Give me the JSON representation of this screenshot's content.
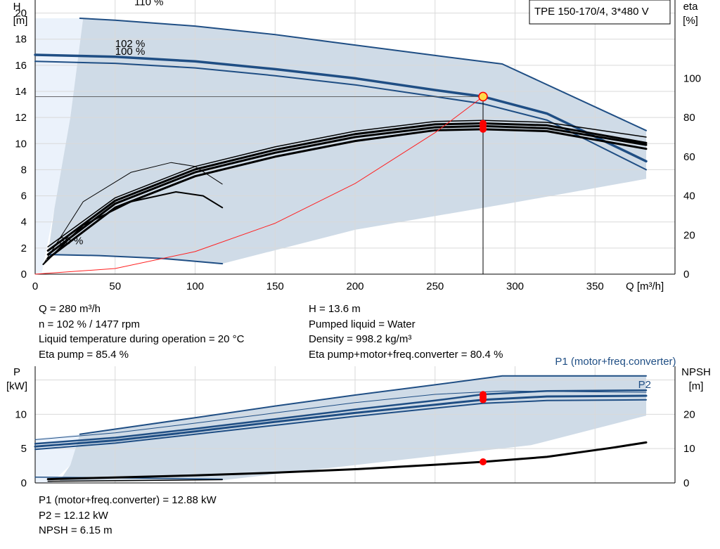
{
  "chart_data": [
    {
      "type": "line",
      "title": "TPE 150-170/4, 3*480 V",
      "xlabel": "Q [m³/h]",
      "ylabel_left": [
        "H",
        "[m]"
      ],
      "ylabel_right": [
        "eta",
        "[%]"
      ],
      "xlim": [
        0,
        400
      ],
      "ylim_left": [
        0,
        21
      ],
      "ylim_right": [
        0,
        140
      ],
      "x_ticks": [
        "0",
        "50",
        "100",
        "150",
        "200",
        "250",
        "300",
        "350"
      ],
      "y_ticks_left": [
        "0",
        "2",
        "4",
        "6",
        "8",
        "10",
        "12",
        "14",
        "16",
        "18",
        "20"
      ],
      "y_ticks_right": [
        "0",
        "20",
        "40",
        "60",
        "80",
        "100"
      ],
      "grid": true,
      "curve_labels": [
        {
          "text": "110 %",
          "x": 62,
          "y": 20.6
        },
        {
          "text": "102 %",
          "x": 50,
          "y": 17.4
        },
        {
          "text": "100 %",
          "x": 50,
          "y": 16.8
        },
        {
          "text": "30 %",
          "x": 15,
          "y": 2.3
        }
      ],
      "series": [
        {
          "name": "110 %",
          "color": "#1f4e84",
          "width": 2,
          "x": [
            28,
            50,
            100,
            150,
            200,
            250,
            292,
            382
          ],
          "y": [
            19.6,
            19.45,
            19.0,
            18.35,
            17.55,
            16.75,
            16.1,
            11.0
          ]
        },
        {
          "name": "102 %",
          "color": "#1f4e84",
          "width": 3.5,
          "x": [
            0,
            50,
            100,
            150,
            200,
            250,
            280,
            320,
            382
          ],
          "y": [
            16.8,
            16.65,
            16.3,
            15.7,
            15.0,
            14.1,
            13.6,
            12.3,
            8.65
          ]
        },
        {
          "name": "100 %",
          "color": "#1f4e84",
          "width": 2,
          "x": [
            0,
            50,
            100,
            150,
            200,
            250,
            280,
            320,
            382
          ],
          "y": [
            16.3,
            16.15,
            15.8,
            15.2,
            14.5,
            13.6,
            13.05,
            11.8,
            8.0
          ]
        },
        {
          "name": "30 %",
          "color": "#1f4e84",
          "width": 2,
          "x": [
            8,
            40,
            80,
            117
          ],
          "y": [
            1.5,
            1.42,
            1.2,
            0.8
          ]
        },
        {
          "name": "eta 110 %",
          "color": "#000000",
          "width": 3,
          "x": [
            8,
            50,
            100,
            150,
            200,
            250,
            280,
            320,
            382
          ],
          "y": [
            8,
            34,
            50,
            60,
            68,
            73.5,
            74,
            73,
            64
          ]
        },
        {
          "name": "eta 102 %",
          "color": "#000000",
          "width": 3,
          "x": [
            8,
            50,
            100,
            150,
            200,
            250,
            280,
            320,
            382
          ],
          "y": [
            10,
            36,
            52,
            62,
            70,
            75,
            75.6,
            74.5,
            66
          ]
        },
        {
          "name": "eta 100 %",
          "color": "#000000",
          "width": 3,
          "x": [
            8,
            50,
            100,
            150,
            200,
            250,
            280,
            320,
            382
          ],
          "y": [
            12,
            37.5,
            53.5,
            63.5,
            71.5,
            76.5,
            77,
            76,
            67
          ]
        },
        {
          "name": "eta pump 102 %",
          "color": "#000000",
          "width": 1.5,
          "x": [
            8,
            50,
            100,
            150,
            200,
            250,
            280,
            320,
            382
          ],
          "y": [
            14,
            39,
            55,
            65,
            73,
            78,
            78.5,
            77.5,
            70
          ]
        },
        {
          "name": "eta 30 %",
          "color": "#000000",
          "width": 2,
          "x": [
            5,
            30,
            60,
            88,
            105,
            117
          ],
          "y": [
            5,
            25,
            37,
            42,
            40,
            34
          ]
        },
        {
          "name": "eta pump 30 %",
          "color": "#000000",
          "width": 1,
          "x": [
            5,
            30,
            60,
            85,
            100,
            117
          ],
          "y": [
            5,
            37,
            52,
            57,
            55,
            46
          ]
        },
        {
          "name": "system curve",
          "color": "#ff2020",
          "width": 1,
          "x": [
            0,
            50,
            100,
            150,
            200,
            250,
            280
          ],
          "y": [
            0,
            0.43,
            1.73,
            3.9,
            6.94,
            10.84,
            13.6
          ]
        }
      ],
      "operating_point": {
        "x": 280,
        "y": 13.6,
        "eta_points": [
          74,
          75.6,
          77
        ]
      }
    },
    {
      "type": "line",
      "ylabel_left": [
        "P",
        "[kW]"
      ],
      "ylabel_right": [
        "NPSH",
        "[m]"
      ],
      "xlim": [
        0,
        400
      ],
      "ylim_left": [
        0,
        17
      ],
      "ylim_right": [
        0,
        34
      ],
      "y_ticks_left": [
        "0",
        "5",
        "10"
      ],
      "y_ticks_right": [
        "0",
        "10",
        "20"
      ],
      "grid": true,
      "curve_labels": [
        {
          "text": "P1 (motor+freq.converter)",
          "x": 325,
          "y": 17.2,
          "color": "#1f4e84"
        },
        {
          "text": "P2",
          "x": 377,
          "y": 13.8,
          "color": "#1f4e84"
        }
      ],
      "series": [
        {
          "name": "P1 110 %",
          "color": "#1f4e84",
          "width": 2,
          "x": [
            28,
            100,
            150,
            200,
            250,
            292,
            382
          ],
          "y": [
            7.1,
            9.5,
            11.2,
            12.8,
            14.3,
            15.6,
            15.6
          ]
        },
        {
          "name": "P1 102 %",
          "color": "#1f4e84",
          "width": 2.5,
          "x": [
            0,
            50,
            100,
            150,
            200,
            250,
            280,
            320,
            382
          ],
          "y": [
            5.7,
            6.6,
            7.9,
            9.3,
            10.7,
            12.0,
            12.9,
            13.4,
            13.5
          ]
        },
        {
          "name": "P2 102 %",
          "color": "#1f4e84",
          "width": 3,
          "x": [
            0,
            50,
            100,
            150,
            200,
            250,
            280,
            320,
            382
          ],
          "y": [
            5.3,
            6.2,
            7.5,
            8.9,
            10.2,
            11.4,
            12.12,
            12.6,
            12.7
          ]
        },
        {
          "name": "P1 100 %",
          "color": "#1f4e84",
          "width": 2,
          "x": [
            0,
            50,
            100,
            150,
            200,
            250,
            280,
            320,
            382
          ],
          "y": [
            4.9,
            5.8,
            7.1,
            8.4,
            9.7,
            10.9,
            11.6,
            12.0,
            12.1
          ]
        },
        {
          "name": "P1 30 %",
          "color": "#1f4e84",
          "width": 1.5,
          "x": [
            0,
            50,
            117
          ],
          "y": [
            0.85,
            0.75,
            0.55
          ]
        },
        {
          "name": "P1 110 % thin",
          "color": "#1f4e84",
          "width": 1,
          "x": [
            0,
            50,
            100,
            150,
            200,
            250,
            292,
            382
          ],
          "y": [
            6.3,
            7.3,
            8.7,
            10.2,
            11.7,
            12.9,
            13.4,
            13.2
          ]
        },
        {
          "name": "NPSH 102 %",
          "color": "#000000",
          "width": 3,
          "x": [
            8,
            50,
            100,
            150,
            200,
            250,
            280,
            320,
            360,
            382
          ],
          "y": [
            1.1,
            1.6,
            2.2,
            3.0,
            4.0,
            5.3,
            6.15,
            7.6,
            10.2,
            11.8
          ]
        },
        {
          "name": "NPSH 30 %",
          "color": "#000000",
          "width": 1.5,
          "x": [
            8,
            60,
            117
          ],
          "y": [
            0.5,
            0.7,
            0.95
          ]
        }
      ],
      "operating_point": {
        "x": 280,
        "P": [
          12.88,
          12.5,
          12.12
        ],
        "NPSH": 6.15
      }
    }
  ],
  "info_top": {
    "left": [
      "Q = 280 m³/h",
      "n = 102 % / 1477 rpm",
      "Liquid temperature during operation = 20 °C",
      "Eta pump = 85.4 %"
    ],
    "right": [
      "H = 13.6 m",
      "Pumped liquid = Water",
      "Density = 998.2 kg/m³",
      "Eta pump+motor+freq.converter = 80.4 %"
    ]
  },
  "info_bottom": [
    "P1 (motor+freq.converter) = 12.88 kW",
    "P2 = 12.12 kW",
    "NPSH = 6.15 m"
  ],
  "colors": {
    "band": "#cfdbe7",
    "band_light": "#ebf2fb",
    "curve": "#1f4e84",
    "grid": "#d9d9d9",
    "operating": "#ff0000"
  }
}
